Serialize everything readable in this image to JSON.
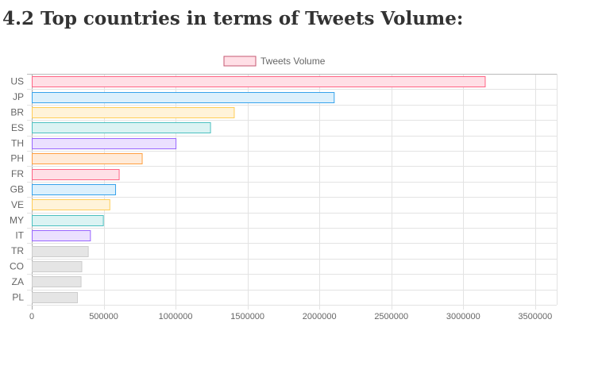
{
  "page": {
    "heading": "4.2 Top countries in terms of Tweets Volume:"
  },
  "chart_data": {
    "type": "bar",
    "orientation": "horizontal",
    "title": "",
    "xlabel": "",
    "ylabel": "",
    "legend": {
      "position": "top",
      "label": "Tweets Volume"
    },
    "grid": true,
    "xlim": [
      0,
      3650000
    ],
    "xticks": [
      0,
      500000,
      1000000,
      1500000,
      2000000,
      2500000,
      3000000,
      3500000
    ],
    "categories": [
      "US",
      "JP",
      "BR",
      "ES",
      "TH",
      "PH",
      "FR",
      "GB",
      "VE",
      "MY",
      "IT",
      "TR",
      "CO",
      "ZA",
      "PL"
    ],
    "series": [
      {
        "name": "Tweets Volume",
        "values": [
          3150000,
          2100000,
          1405000,
          1240000,
          1000000,
          765000,
          605000,
          580000,
          540000,
          495000,
          405000,
          390000,
          345000,
          340000,
          315000
        ]
      }
    ],
    "colors": [
      {
        "fill": "#ffdfe6",
        "stroke": "#ff6384"
      },
      {
        "fill": "#dcf0fc",
        "stroke": "#36a2eb"
      },
      {
        "fill": "#fff3d9",
        "stroke": "#ffcd56"
      },
      {
        "fill": "#dbf3f3",
        "stroke": "#4bc0c0"
      },
      {
        "fill": "#ebe0ff",
        "stroke": "#9966ff"
      },
      {
        "fill": "#ffebd9",
        "stroke": "#ff9f40"
      },
      {
        "fill": "#ffdfe6",
        "stroke": "#ff6384"
      },
      {
        "fill": "#dcf0fc",
        "stroke": "#36a2eb"
      },
      {
        "fill": "#fff3d9",
        "stroke": "#ffcd56"
      },
      {
        "fill": "#dbf3f3",
        "stroke": "#4bc0c0"
      },
      {
        "fill": "#ebe0ff",
        "stroke": "#9966ff"
      },
      {
        "fill": "#e5e5e5",
        "stroke": "#cccccc"
      },
      {
        "fill": "#e5e5e5",
        "stroke": "#cccccc"
      },
      {
        "fill": "#e5e5e5",
        "stroke": "#cccccc"
      },
      {
        "fill": "#e5e5e5",
        "stroke": "#cccccc"
      }
    ],
    "legend_color": {
      "fill": "#ffdfe6",
      "stroke": "#c45a73"
    }
  }
}
